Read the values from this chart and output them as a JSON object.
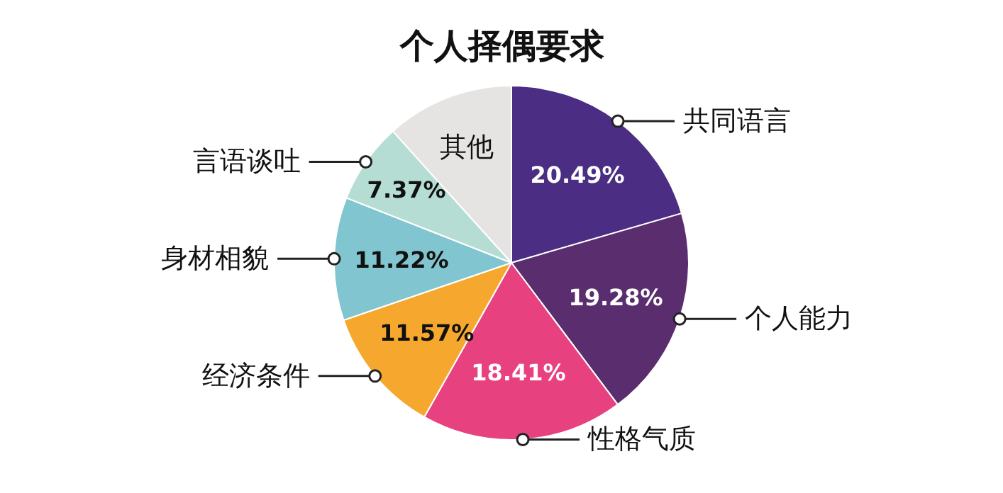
{
  "chart_data": {
    "type": "pie",
    "title": "个人择偶要求",
    "categories": [
      "共同语言",
      "个人能力",
      "性格气质",
      "经济条件",
      "身材相貌",
      "言语谈吐",
      "其他"
    ],
    "values": [
      20.49,
      19.28,
      18.41,
      11.57,
      11.22,
      7.37,
      11.66
    ],
    "colors": [
      "#4b2d83",
      "#5a2e6e",
      "#e7427f",
      "#f5a82d",
      "#80c5cf",
      "#b5ddd3",
      "#e6e4e2"
    ],
    "value_labels": [
      "20.49%",
      "19.28%",
      "18.41%",
      "11.57%",
      "11.22%",
      "7.37%",
      null
    ]
  }
}
